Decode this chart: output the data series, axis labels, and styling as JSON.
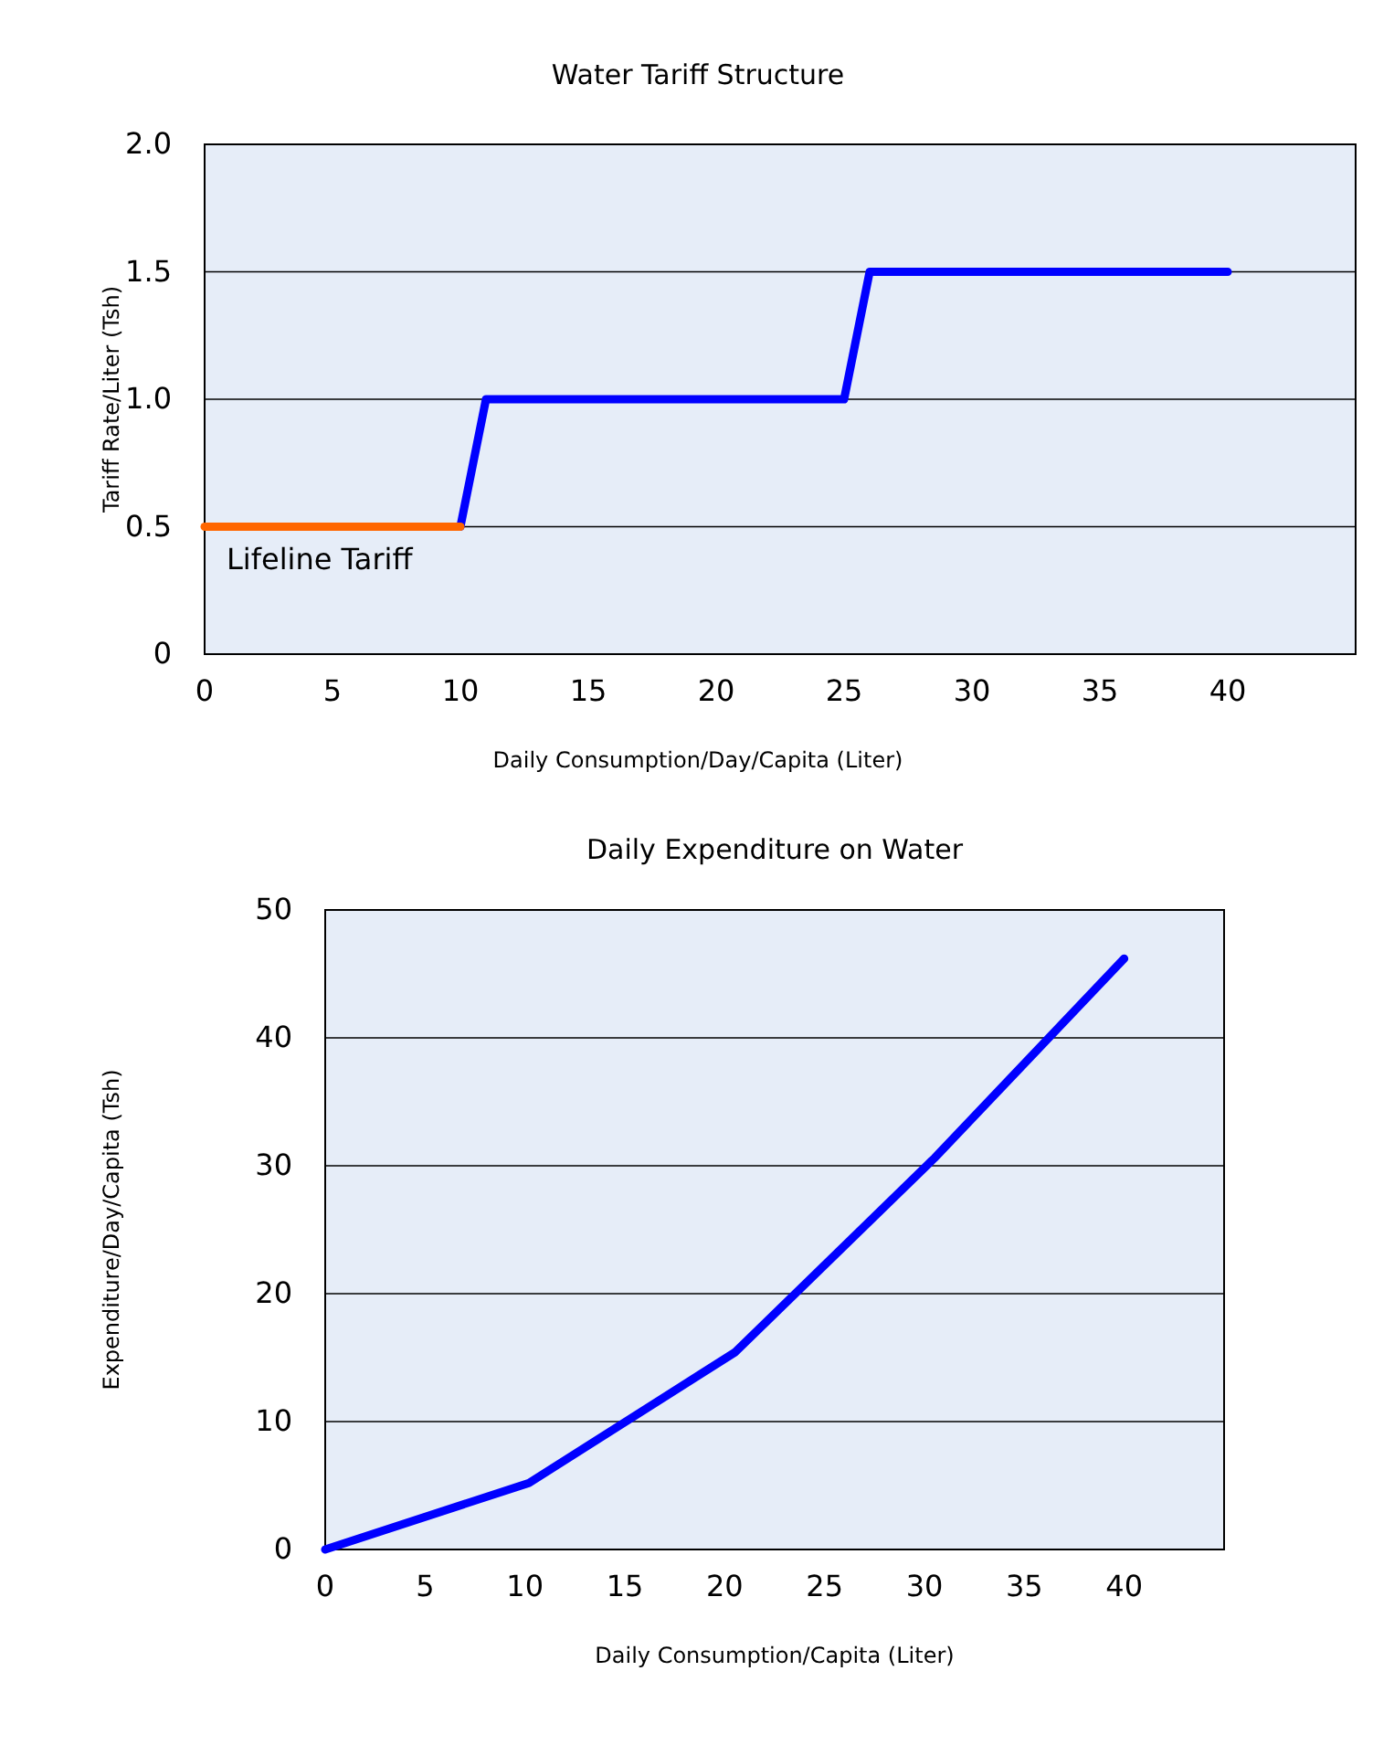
{
  "chart_data": [
    {
      "type": "line",
      "title": "Water Tariff Structure",
      "xlabel": "Daily Consumption/Day/Capita (Liter)",
      "ylabel": "Tariff Rate/Liter (Tsh)",
      "xlim": [
        0,
        45
      ],
      "xticks": [
        0,
        5,
        10,
        15,
        20,
        25,
        30,
        35,
        40
      ],
      "ylim": [
        0,
        2
      ],
      "yticks": [
        0,
        {
          "value": 0.5,
          "label": "0.5"
        },
        {
          "value": 1,
          "label": "1.0"
        },
        {
          "value": 1.5,
          "label": "1.5"
        },
        {
          "value": 2,
          "label": "2.0"
        }
      ],
      "grid": "y",
      "legend": false,
      "marker": "none",
      "line_style": "solid",
      "series": [
        {
          "color": "#0000ff",
          "x": [
            10,
            11,
            25,
            26,
            40
          ],
          "values": [
            0.5,
            1,
            1,
            1.5,
            1.5
          ]
        },
        {
          "name": "Lifeline Tariff",
          "color": "#ff6600",
          "x": [
            0,
            10
          ],
          "values": [
            0.5,
            0.5
          ]
        }
      ]
    },
    {
      "type": "line",
      "title": "Daily Expenditure on Water",
      "xlabel": "Daily Consumption/Capita (Liter)",
      "ylabel": "Expenditure/Day/Capita (Tsh)",
      "xlim": [
        0,
        45
      ],
      "xticks": [
        0,
        5,
        10,
        15,
        20,
        25,
        30,
        35,
        40
      ],
      "ylim": [
        0,
        50
      ],
      "yticks": [
        0,
        10,
        20,
        30,
        40,
        50
      ],
      "grid": "y",
      "marker": "none",
      "line_style": "solid",
      "series": [
        {
          "color": "#0000ff",
          "x": [
            0,
            10.2,
            20.5,
            30.5,
            40
          ],
          "values": [
            0,
            5.2,
            15.4,
            30.6,
            46.2
          ]
        }
      ]
    }
  ]
}
